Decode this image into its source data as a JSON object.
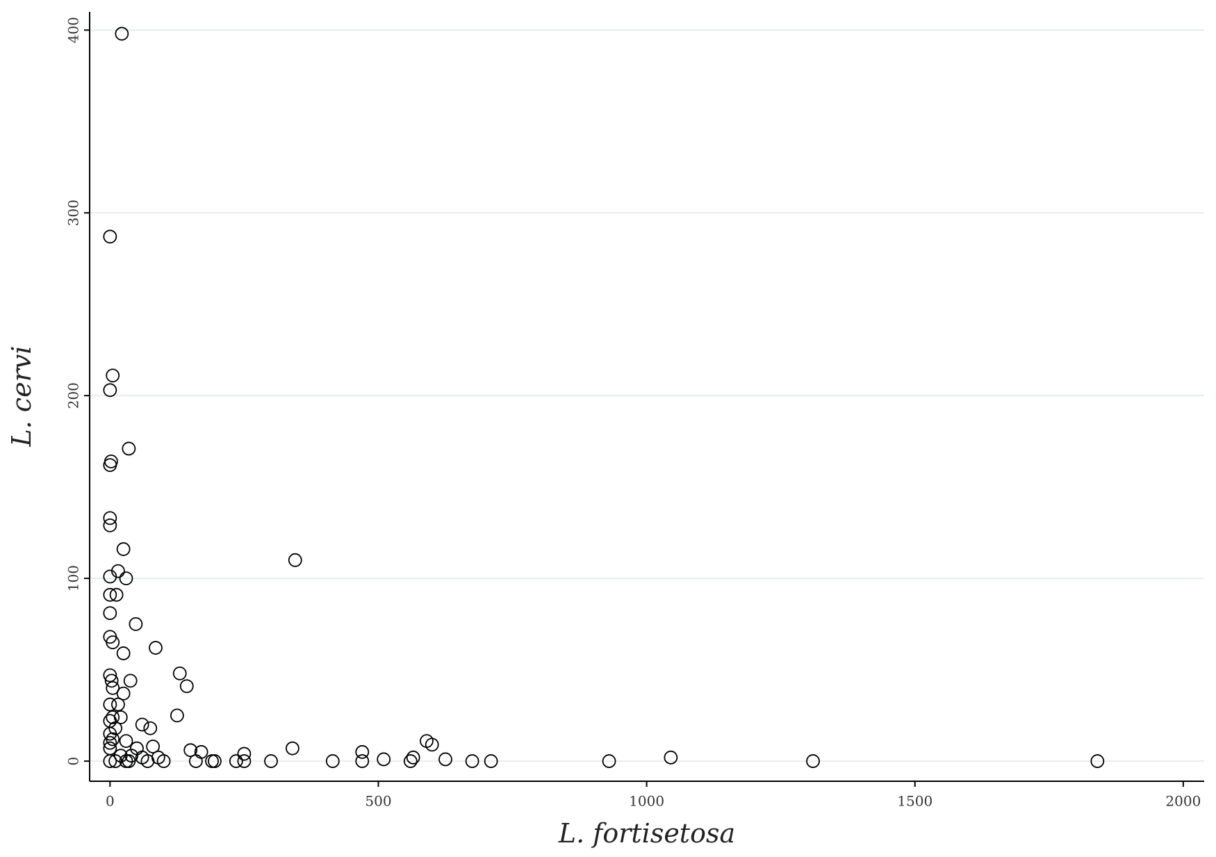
{
  "chart_data": {
    "type": "scatter",
    "x_label": "L. fortisetosa",
    "y_label": "L. cervi",
    "xlim": [
      -38,
      2039
    ],
    "ylim": [
      -11,
      410
    ],
    "xticks": [
      0,
      500,
      1000,
      1500,
      2000
    ],
    "yticks": [
      0,
      100,
      200,
      300,
      400
    ],
    "grid": true,
    "color": "#000000",
    "series": [
      {
        "x": [
          22,
          0,
          5,
          0,
          35,
          2,
          0,
          0,
          0,
          25,
          345,
          15,
          30,
          0,
          12,
          0,
          0,
          48,
          0,
          5,
          85,
          25,
          0,
          3,
          38,
          130,
          143,
          5,
          25,
          15,
          0,
          125,
          20,
          0,
          5,
          60,
          75,
          10,
          0,
          5,
          30,
          0,
          80,
          50,
          0,
          340,
          150,
          170,
          470,
          250,
          590,
          600,
          1045,
          565,
          20,
          40,
          60,
          90,
          0,
          10,
          30,
          35,
          70,
          100,
          160,
          190,
          195,
          235,
          250,
          300,
          415,
          470,
          510,
          560,
          625,
          675,
          710,
          930,
          1310,
          1840
        ],
        "y": [
          398,
          287,
          211,
          203,
          171,
          164,
          162,
          133,
          129,
          116,
          110,
          104,
          100,
          101,
          91,
          91,
          81,
          75,
          68,
          65,
          62,
          59,
          47,
          44,
          44,
          48,
          41,
          40,
          37,
          31,
          31,
          25,
          24,
          22,
          24,
          20,
          18,
          18,
          15,
          12,
          11,
          10,
          8,
          7,
          7,
          7,
          6,
          5,
          5,
          4,
          11,
          9,
          2,
          2,
          3,
          3,
          2,
          2,
          0,
          0,
          0,
          0,
          0,
          0,
          0,
          0,
          0,
          0,
          0,
          0,
          0,
          0,
          1,
          0,
          1,
          0,
          0,
          0,
          0,
          0
        ]
      }
    ]
  }
}
